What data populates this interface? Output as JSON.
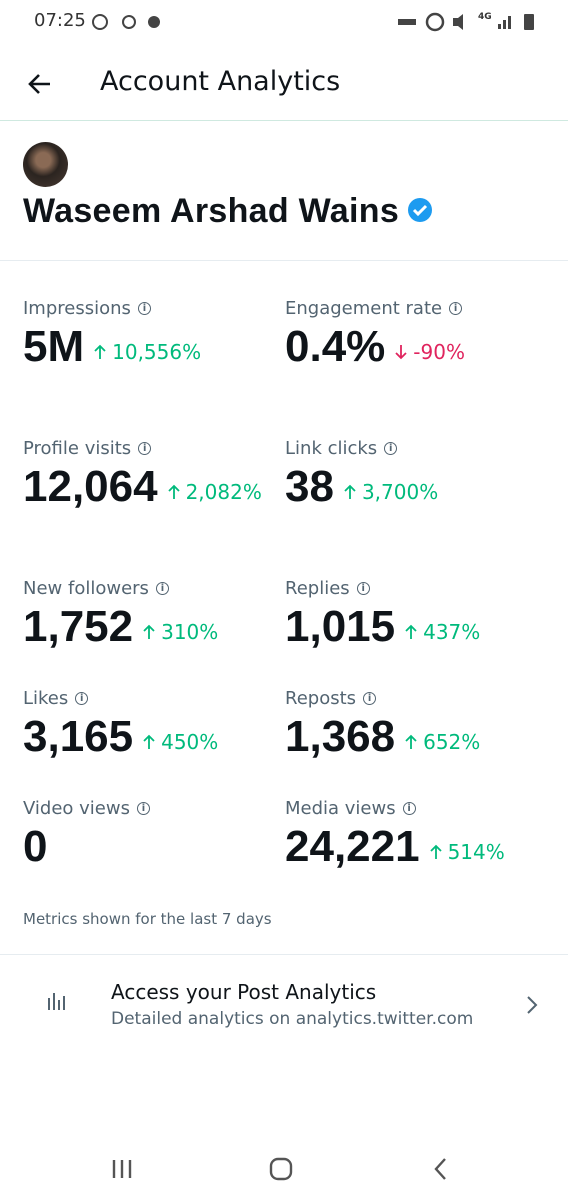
{
  "status_bar": {
    "time": "07:25",
    "network": "4G"
  },
  "header": {
    "title": "Account Analytics"
  },
  "profile": {
    "name": "Waseem Arshad Wains"
  },
  "metrics": [
    {
      "label": "Impressions",
      "value": "5M",
      "change": "10,556%"
    },
    {
      "label": "Engagement rate",
      "value": "0.4%",
      "change": "-90%"
    },
    {
      "label": "Profile visits",
      "value": "12,064",
      "change": "2,082%"
    },
    {
      "label": "Link clicks",
      "value": "38",
      "change": "3,700%"
    },
    {
      "label": "New followers",
      "value": "1,752",
      "change": "310%"
    },
    {
      "label": "Replies",
      "value": "1,015",
      "change": "437%"
    },
    {
      "label": "Likes",
      "value": "3,165",
      "change": "450%"
    },
    {
      "label": "Reposts",
      "value": "1,368",
      "change": "652%"
    },
    {
      "label": "Video views",
      "value": "0"
    },
    {
      "label": "Media views",
      "value": "24,221",
      "change": "514%"
    }
  ],
  "footnote": "Metrics shown for the last 7 days",
  "link": {
    "title": "Access your Post Analytics",
    "subtitle": "Detailed analytics on analytics.twitter.com"
  }
}
